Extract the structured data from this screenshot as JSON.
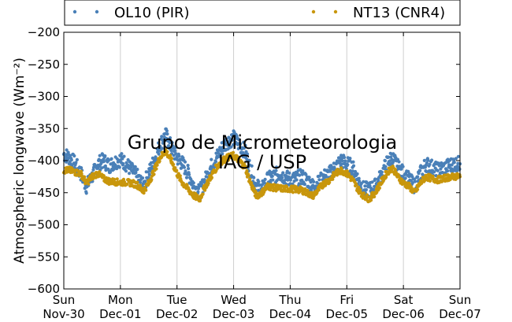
{
  "chart_data": {
    "type": "scatter",
    "ylabel": "Atmospheric longwave (Wm⁻²)",
    "xlabel": "",
    "ylim": [
      -600,
      -200
    ],
    "yticks": [
      -200,
      -250,
      -300,
      -350,
      -400,
      -450,
      -500,
      -550,
      -600
    ],
    "xlim": [
      "2014-11-30",
      "2014-12-07"
    ],
    "xticks": [
      {
        "day": "Sun",
        "date": "Nov-30"
      },
      {
        "day": "Mon",
        "date": "Dec-01"
      },
      {
        "day": "Tue",
        "date": "Dec-02"
      },
      {
        "day": "Wed",
        "date": "Dec-03"
      },
      {
        "day": "Thu",
        "date": "Dec-04"
      },
      {
        "day": "Fri",
        "date": "Dec-05"
      },
      {
        "day": "Sat",
        "date": "Dec-06"
      },
      {
        "day": "Sun",
        "date": "Dec-07"
      }
    ],
    "grid": "vertical",
    "legend_position": "top, outside plot",
    "watermark": [
      "Grupo de Micrometeorologia",
      "IAG / USP"
    ],
    "series": [
      {
        "name": "OL10 (PIR)",
        "color": "#4a80b8",
        "x_days": [
          0.0,
          0.1,
          0.2,
          0.3,
          0.4,
          0.5,
          0.6,
          0.7,
          0.8,
          0.9,
          1.0,
          1.1,
          1.2,
          1.3,
          1.4,
          1.5,
          1.6,
          1.7,
          1.8,
          1.9,
          2.0,
          2.1,
          2.2,
          2.3,
          2.4,
          2.5,
          2.6,
          2.7,
          2.8,
          2.9,
          3.0,
          3.1,
          3.2,
          3.3,
          3.4,
          3.5,
          3.6,
          3.7,
          3.8,
          3.9,
          4.0,
          4.1,
          4.2,
          4.3,
          4.4,
          4.5,
          4.6,
          4.7,
          4.8,
          4.9,
          5.0,
          5.1,
          5.2,
          5.3,
          5.4,
          5.5,
          5.6,
          5.7,
          5.8,
          5.9,
          6.0,
          6.1,
          6.2,
          6.3,
          6.4,
          6.5,
          6.6,
          6.7,
          6.8,
          6.9,
          7.0
        ],
        "values": [
          -390,
          -395,
          -405,
          -420,
          -440,
          -425,
          -405,
          -400,
          -408,
          -402,
          -398,
          -405,
          -415,
          -425,
          -440,
          -420,
          -400,
          -375,
          -360,
          -380,
          -395,
          -405,
          -420,
          -440,
          -450,
          -430,
          -410,
          -395,
          -380,
          -370,
          -365,
          -375,
          -385,
          -415,
          -440,
          -445,
          -430,
          -425,
          -420,
          -425,
          -430,
          -428,
          -425,
          -430,
          -440,
          -435,
          -425,
          -420,
          -410,
          -400,
          -405,
          -410,
          -430,
          -445,
          -445,
          -440,
          -425,
          -405,
          -395,
          -410,
          -420,
          -430,
          -440,
          -420,
          -405,
          -410,
          -415,
          -412,
          -408,
          -405,
          -405
        ]
      },
      {
        "name": "NT13 (CNR4)",
        "color": "#c8960c",
        "x_days": [
          0.0,
          0.1,
          0.2,
          0.3,
          0.4,
          0.5,
          0.6,
          0.7,
          0.8,
          0.9,
          1.0,
          1.1,
          1.2,
          1.3,
          1.4,
          1.5,
          1.6,
          1.7,
          1.8,
          1.9,
          2.0,
          2.1,
          2.2,
          2.3,
          2.4,
          2.5,
          2.6,
          2.7,
          2.8,
          2.9,
          3.0,
          3.1,
          3.2,
          3.3,
          3.4,
          3.5,
          3.6,
          3.7,
          3.8,
          3.9,
          4.0,
          4.1,
          4.2,
          4.3,
          4.4,
          4.5,
          4.6,
          4.7,
          4.8,
          4.9,
          5.0,
          5.1,
          5.2,
          5.3,
          5.4,
          5.5,
          5.6,
          5.7,
          5.8,
          5.9,
          6.0,
          6.1,
          6.2,
          6.3,
          6.4,
          6.5,
          6.6,
          6.7,
          6.8,
          6.9,
          7.0
        ],
        "values": [
          -415,
          -415,
          -418,
          -420,
          -435,
          -425,
          -420,
          -428,
          -432,
          -433,
          -434,
          -434,
          -435,
          -438,
          -448,
          -435,
          -415,
          -395,
          -385,
          -400,
          -420,
          -435,
          -445,
          -455,
          -460,
          -440,
          -425,
          -410,
          -400,
          -395,
          -392,
          -400,
          -410,
          -435,
          -455,
          -450,
          -440,
          -442,
          -443,
          -444,
          -444,
          -445,
          -446,
          -450,
          -455,
          -445,
          -435,
          -430,
          -420,
          -415,
          -420,
          -430,
          -445,
          -455,
          -460,
          -450,
          -435,
          -420,
          -410,
          -425,
          -435,
          -440,
          -450,
          -435,
          -425,
          -428,
          -430,
          -428,
          -426,
          -425,
          -425
        ]
      }
    ]
  }
}
